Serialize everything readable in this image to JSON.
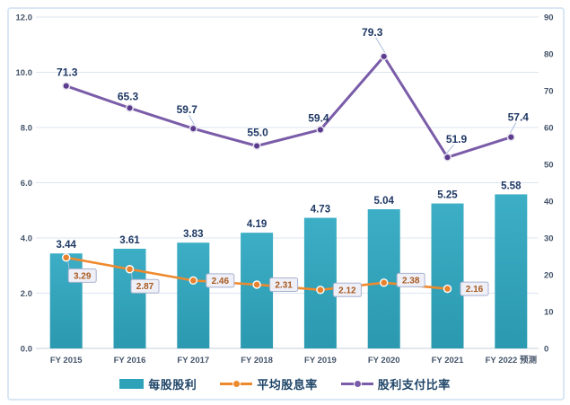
{
  "chart_data": {
    "type": "combo-bar-line",
    "title": "",
    "categories": [
      "FY 2015",
      "FY 2016",
      "FY 2017",
      "FY 2018",
      "FY 2019",
      "FY 2020",
      "FY 2021",
      "FY 2022 预测"
    ],
    "series": [
      {
        "name": "每股股利",
        "type": "bar",
        "axis": "left",
        "color": "#2EA2B9",
        "color_top": "#3CAEC5",
        "color_bottom": "#2B99B0",
        "values": [
          3.44,
          3.61,
          3.83,
          4.19,
          4.73,
          5.04,
          5.25,
          5.58
        ],
        "labels": [
          "3.44",
          "3.61",
          "3.83",
          "4.19",
          "4.73",
          "5.04",
          "5.25",
          "5.58"
        ]
      },
      {
        "name": "平均股息率",
        "type": "line",
        "axis": "left",
        "color": "#EE8A2E",
        "marker_fill": "#E8822C",
        "label_style": "boxed",
        "values": [
          3.29,
          2.87,
          2.46,
          2.31,
          2.12,
          2.38,
          2.16,
          null
        ],
        "labels": [
          "3.29",
          "2.87",
          "2.46",
          "2.31",
          "2.12",
          "2.38",
          "2.16"
        ],
        "label_offsets": [
          [
            18,
            20
          ],
          [
            17,
            19
          ],
          [
            22.5,
            0
          ],
          [
            22.5,
            0
          ],
          [
            22.5,
            0
          ],
          [
            22.5,
            -3
          ],
          [
            22.5,
            0
          ]
        ],
        "leader_indices": [
          0,
          1
        ]
      },
      {
        "name": "股利支付比率",
        "type": "line",
        "axis": "right",
        "color": "#7A5CA8",
        "marker_fill": "#5C3B8E",
        "label_style": "plain",
        "values": [
          71.3,
          65.3,
          59.7,
          55.0,
          59.4,
          79.3,
          51.9,
          57.4
        ],
        "labels": [
          "71.3",
          "65.3",
          "59.7",
          "55.0",
          "59.4",
          "79.3",
          "51.9",
          "57.4"
        ],
        "label_offsets": [
          [
            1,
            -15
          ],
          [
            -2,
            -13
          ],
          [
            -7,
            -21
          ],
          [
            1,
            -15
          ],
          [
            -2,
            -13
          ],
          [
            -13,
            -27
          ],
          [
            10,
            -20
          ],
          [
            8,
            -22
          ]
        ],
        "leader_indices": [
          2,
          5,
          6,
          7
        ]
      }
    ],
    "left_axis": {
      "min": 0,
      "max": 12,
      "ticks": [
        "12.0",
        "10.0",
        "8.0",
        "6.0",
        "4.0",
        "2.0",
        "0.0"
      ]
    },
    "right_axis": {
      "min": 0,
      "max": 90,
      "ticks": [
        "90",
        "80",
        "70",
        "60",
        "50",
        "40",
        "30",
        "20",
        "10",
        "0"
      ]
    },
    "grid": "horizontal",
    "legend_position": "bottom",
    "colors": {
      "grid_line": "#DCE5F0",
      "axis_line": "#C5CFDE",
      "tick_text": "#44546A",
      "data_label": "#1F3864",
      "leader_line": "#A9BEDA",
      "label_box_bg": "#EFEFF7",
      "label_box_border": "#A8B2CE",
      "label_box_text": "#A85A1F",
      "frame_border": "#D9E6F4"
    }
  }
}
